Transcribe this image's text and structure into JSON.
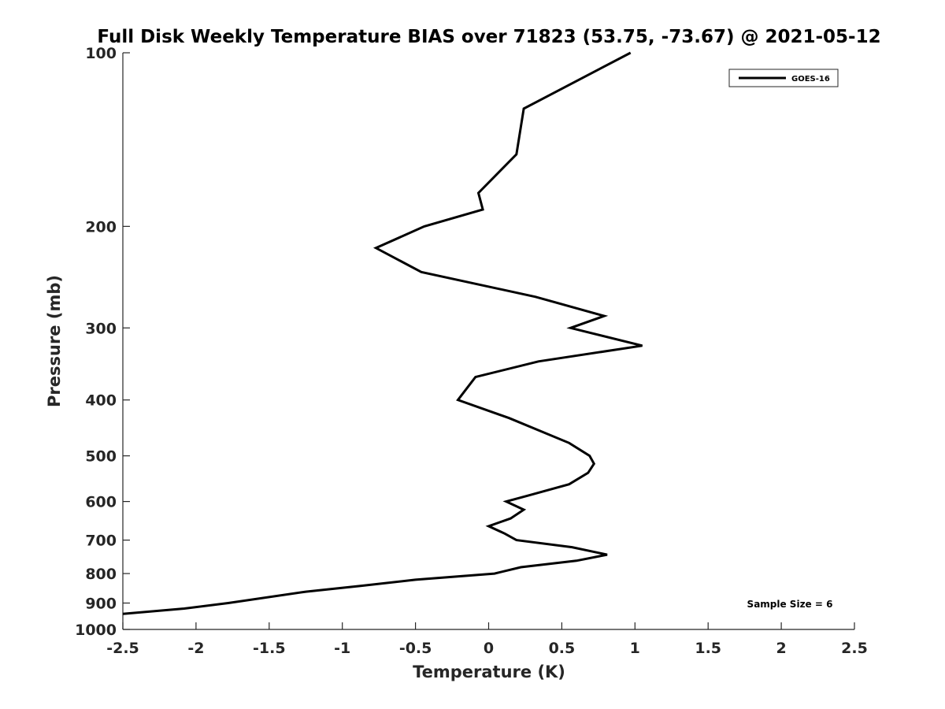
{
  "chart_data": {
    "type": "line",
    "title": "Full Disk Weekly Temperature BIAS over 71823 (53.75, -73.67) @ 2021-05-12",
    "xlabel": "Temperature (K)",
    "ylabel": "Pressure (mb)",
    "xlim": [
      -2.5,
      2.5
    ],
    "ylim": [
      100,
      1000
    ],
    "y_scale": "log",
    "y_reversed": true,
    "x_ticks": [
      -2.5,
      -2,
      -1.5,
      -1,
      -0.5,
      0,
      0.5,
      1,
      1.5,
      2,
      2.5
    ],
    "x_tick_labels": [
      "-2.5",
      "-2",
      "-1.5",
      "-1",
      "-0.5",
      "0",
      "0.5",
      "1",
      "1.5",
      "2",
      "2.5"
    ],
    "y_ticks": [
      100,
      200,
      300,
      400,
      500,
      600,
      700,
      800,
      900,
      1000
    ],
    "y_tick_labels": [
      "100",
      "200",
      "300",
      "400",
      "500",
      "600",
      "700",
      "800",
      "900",
      "1000"
    ],
    "grid": false,
    "legend_position": "top-right",
    "line_color": "#000000",
    "series": [
      {
        "name": "GOES-16",
        "points": [
          {
            "x": 0.97,
            "y": 100
          },
          {
            "x": 0.24,
            "y": 125
          },
          {
            "x": 0.19,
            "y": 150
          },
          {
            "x": -0.07,
            "y": 175
          },
          {
            "x": -0.04,
            "y": 187
          },
          {
            "x": -0.44,
            "y": 200
          },
          {
            "x": -0.77,
            "y": 218
          },
          {
            "x": -0.46,
            "y": 240
          },
          {
            "x": 0.32,
            "y": 265
          },
          {
            "x": 0.79,
            "y": 286
          },
          {
            "x": 0.56,
            "y": 300
          },
          {
            "x": 1.05,
            "y": 322
          },
          {
            "x": 0.34,
            "y": 343
          },
          {
            "x": -0.09,
            "y": 365
          },
          {
            "x": -0.21,
            "y": 400
          },
          {
            "x": 0.14,
            "y": 430
          },
          {
            "x": 0.55,
            "y": 475
          },
          {
            "x": 0.69,
            "y": 500
          },
          {
            "x": 0.72,
            "y": 516
          },
          {
            "x": 0.68,
            "y": 535
          },
          {
            "x": 0.55,
            "y": 560
          },
          {
            "x": 0.28,
            "y": 585
          },
          {
            "x": 0.12,
            "y": 600
          },
          {
            "x": 0.24,
            "y": 620
          },
          {
            "x": 0.15,
            "y": 642
          },
          {
            "x": 0.0,
            "y": 662
          },
          {
            "x": 0.11,
            "y": 682
          },
          {
            "x": 0.19,
            "y": 700
          },
          {
            "x": 0.57,
            "y": 720
          },
          {
            "x": 0.81,
            "y": 742
          },
          {
            "x": 0.6,
            "y": 760
          },
          {
            "x": 0.22,
            "y": 780
          },
          {
            "x": 0.04,
            "y": 800
          },
          {
            "x": -0.5,
            "y": 820
          },
          {
            "x": -0.87,
            "y": 840
          },
          {
            "x": -1.25,
            "y": 860
          },
          {
            "x": -1.78,
            "y": 900
          },
          {
            "x": -2.08,
            "y": 920
          },
          {
            "x": -2.5,
            "y": 940
          }
        ]
      }
    ],
    "annotation": "Sample Size = 6"
  }
}
